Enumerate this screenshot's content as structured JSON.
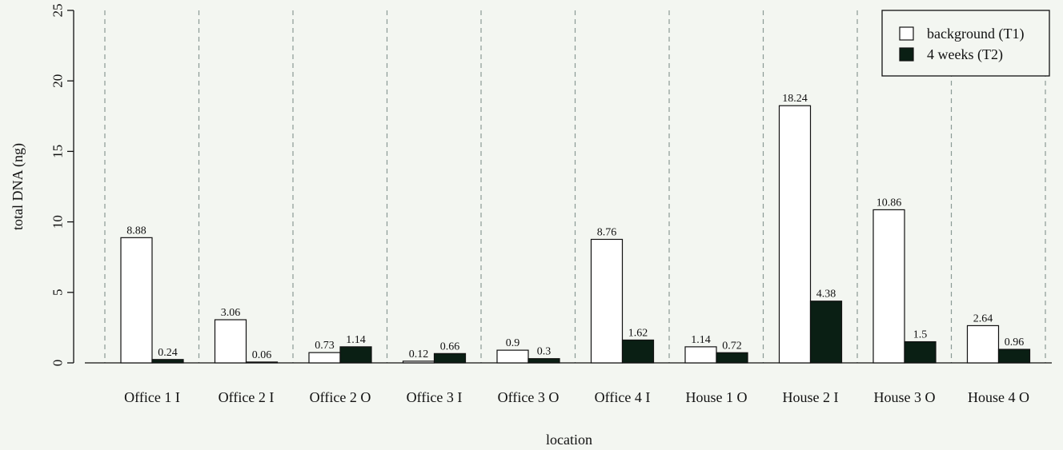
{
  "chart_data": {
    "type": "bar",
    "xlabel": "location",
    "ylabel": "total DNA (ng)",
    "ylim": [
      0,
      25
    ],
    "yticks": [
      0,
      5,
      10,
      15,
      20,
      25
    ],
    "categories": [
      "Office 1 I",
      "Office 2 I",
      "Office 2 O",
      "Office 3 I",
      "Office 3 O",
      "Office 4 I",
      "House 1 O",
      "House 2 I",
      "House 3 O",
      "House 4 O"
    ],
    "series": [
      {
        "name": "background (T1)",
        "fill": "#ffffff",
        "values": [
          8.88,
          3.06,
          0.73,
          0.12,
          0.9,
          8.76,
          1.14,
          18.24,
          10.86,
          2.64
        ],
        "labels": [
          "8.88",
          "3.06",
          "0.73",
          "0.12",
          "0.9",
          "8.76",
          "1.14",
          "18.24",
          "10.86",
          "2.64"
        ]
      },
      {
        "name": "4 weeks (T2)",
        "fill": "#0a1f14",
        "values": [
          0.24,
          0.06,
          1.14,
          0.66,
          0.3,
          1.62,
          0.72,
          4.38,
          1.5,
          0.96
        ],
        "labels": [
          "0.24",
          "0.06",
          "1.14",
          "0.66",
          "0.3",
          "1.62",
          "0.72",
          "4.38",
          "1.5",
          "0.96"
        ]
      }
    ],
    "legend_position": "top-right",
    "grid": "vertical dashed separators between groups"
  }
}
